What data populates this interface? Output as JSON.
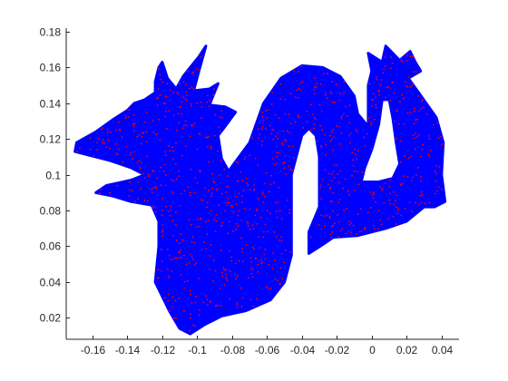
{
  "chart_data": {
    "type": "scatter",
    "title": "",
    "xlabel": "",
    "ylabel": "",
    "xlim": [
      -0.175,
      0.05
    ],
    "ylim": [
      0.008,
      0.182
    ],
    "xticks": [
      -0.16,
      -0.14,
      -0.12,
      -0.1,
      -0.08,
      -0.06,
      -0.04,
      -0.02,
      0,
      0.02,
      0.04
    ],
    "xtick_labels": [
      "-0.16",
      "-0.14",
      "-0.12",
      "-0.1",
      "-0.08",
      "-0.06",
      "-0.04",
      "-0.02",
      "0",
      "0.02",
      "0.04"
    ],
    "yticks": [
      0.02,
      0.04,
      0.06,
      0.08,
      0.1,
      0.12,
      0.14,
      0.16,
      0.18
    ],
    "ytick_labels": [
      "0.02",
      "0.04",
      "0.06",
      "0.08",
      "0.1",
      "0.12",
      "0.14",
      "0.16",
      "0.18"
    ],
    "grid": false,
    "legend": "none",
    "description_shape": "dragon point cloud",
    "series": [
      {
        "marker": "dot",
        "color": "#0000ff",
        "outline": [
          [
            -0.169,
            0.118
          ],
          [
            -0.158,
            0.124
          ],
          [
            -0.148,
            0.131
          ],
          [
            -0.14,
            0.136
          ],
          [
            -0.136,
            0.14
          ],
          [
            -0.13,
            0.142
          ],
          [
            -0.124,
            0.146
          ],
          [
            -0.124,
            0.152
          ],
          [
            -0.122,
            0.16
          ],
          [
            -0.12,
            0.163
          ],
          [
            -0.117,
            0.154
          ],
          [
            -0.112,
            0.148
          ],
          [
            -0.108,
            0.155
          ],
          [
            -0.104,
            0.16
          ],
          [
            -0.099,
            0.166
          ],
          [
            -0.095,
            0.172
          ],
          [
            -0.099,
            0.158
          ],
          [
            -0.102,
            0.147
          ],
          [
            -0.093,
            0.148
          ],
          [
            -0.088,
            0.151
          ],
          [
            -0.093,
            0.139
          ],
          [
            -0.084,
            0.138
          ],
          [
            -0.078,
            0.135
          ],
          [
            -0.084,
            0.127
          ],
          [
            -0.088,
            0.122
          ],
          [
            -0.086,
            0.109
          ],
          [
            -0.082,
            0.102
          ],
          [
            -0.07,
            0.118
          ],
          [
            -0.062,
            0.14
          ],
          [
            -0.052,
            0.154
          ],
          [
            -0.04,
            0.161
          ],
          [
            -0.028,
            0.16
          ],
          [
            -0.018,
            0.155
          ],
          [
            -0.01,
            0.144
          ],
          [
            -0.008,
            0.134
          ],
          [
            -0.002,
            0.127
          ],
          [
            -0.002,
            0.15
          ],
          [
            0.0,
            0.158
          ],
          [
            -0.002,
            0.168
          ],
          [
            0.006,
            0.163
          ],
          [
            0.008,
            0.172
          ],
          [
            0.016,
            0.164
          ],
          [
            0.022,
            0.169
          ],
          [
            0.025,
            0.163
          ],
          [
            0.028,
            0.158
          ],
          [
            0.021,
            0.154
          ],
          [
            0.029,
            0.143
          ],
          [
            0.037,
            0.132
          ],
          [
            0.041,
            0.118
          ],
          [
            0.04,
            0.1
          ],
          [
            0.042,
            0.085
          ],
          [
            0.036,
            0.082
          ],
          [
            0.03,
            0.082
          ],
          [
            0.02,
            0.074
          ],
          [
            0.008,
            0.07
          ],
          [
            -0.008,
            0.066
          ],
          [
            -0.022,
            0.065
          ],
          [
            -0.028,
            0.061
          ],
          [
            -0.036,
            0.056
          ],
          [
            -0.036,
            0.068
          ],
          [
            -0.03,
            0.082
          ],
          [
            -0.03,
            0.11
          ],
          [
            -0.032,
            0.122
          ],
          [
            -0.036,
            0.126
          ],
          [
            -0.04,
            0.122
          ],
          [
            -0.046,
            0.1
          ],
          [
            -0.046,
            0.075
          ],
          [
            -0.046,
            0.055
          ],
          [
            -0.05,
            0.04
          ],
          [
            -0.058,
            0.03
          ],
          [
            -0.072,
            0.024
          ],
          [
            -0.086,
            0.021
          ],
          [
            -0.096,
            0.016
          ],
          [
            -0.104,
            0.011
          ],
          [
            -0.11,
            0.014
          ],
          [
            -0.116,
            0.024
          ],
          [
            -0.124,
            0.04
          ],
          [
            -0.122,
            0.06
          ],
          [
            -0.122,
            0.074
          ],
          [
            -0.126,
            0.083
          ],
          [
            -0.138,
            0.085
          ],
          [
            -0.148,
            0.088
          ],
          [
            -0.158,
            0.09
          ],
          [
            -0.152,
            0.094
          ],
          [
            -0.138,
            0.097
          ],
          [
            -0.13,
            0.1
          ],
          [
            -0.138,
            0.104
          ],
          [
            -0.15,
            0.108
          ],
          [
            -0.162,
            0.111
          ],
          [
            -0.17,
            0.113
          ]
        ],
        "interior": [
          [
            -0.006,
            0.096
          ],
          [
            0.004,
            0.096
          ],
          [
            0.012,
            0.098
          ],
          [
            0.016,
            0.106
          ],
          [
            0.014,
            0.118
          ],
          [
            0.012,
            0.132
          ],
          [
            0.01,
            0.142
          ],
          [
            0.006,
            0.142
          ],
          [
            0.004,
            0.128
          ],
          [
            0.0,
            0.114
          ],
          [
            -0.004,
            0.104
          ]
        ]
      },
      {
        "marker": "dot",
        "color": "#ff0000",
        "role": "sampled points"
      }
    ]
  }
}
